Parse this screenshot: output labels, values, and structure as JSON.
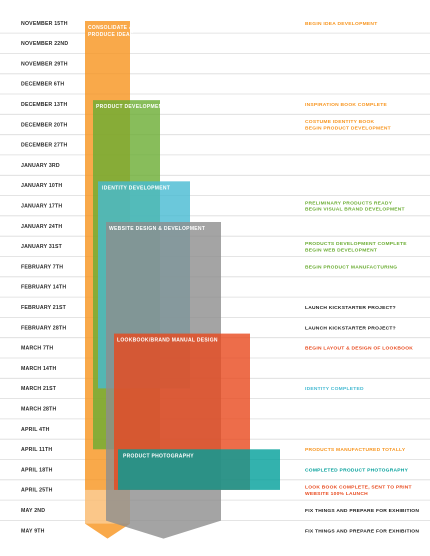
{
  "chart_data": {
    "type": "gantt",
    "dates": [
      "NOVEMBER 15TH",
      "NOVEMBER 22ND",
      "NOVEMBER 29TH",
      "DECEMBER 6TH",
      "DECEMBER 13TH",
      "DECEMBER 20TH",
      "DECEMBER 27TH",
      "JANUARY 3RD",
      "JANUARY 10TH",
      "JANUARY 17TH",
      "JANUARY 24TH",
      "JANUARY 31ST",
      "FEBRUARY 7TH",
      "FEBRUARY 14TH",
      "FEBRUARY 21ST",
      "FEBRUARY 28TH",
      "MARCH 7TH",
      "MARCH 14TH",
      "MARCH 21ST",
      "MARCH 28TH",
      "APRIL 4TH",
      "APRIL 11TH",
      "APRIL 18TH",
      "APRIL 25TH",
      "MAY 2ND",
      "MAY 9TH"
    ],
    "phases": [
      {
        "label": "CONSOLIDATE & PRODUCE IDEAS",
        "start": 0.4,
        "end": 25.9,
        "color": "#f7941d",
        "arrow": true,
        "fade_after": 23.5
      },
      {
        "label": "PRODUCT DEVELOPMENT",
        "start": 4.3,
        "end": 21.5,
        "color": "#6aac32"
      },
      {
        "label": "IDENTITY DEVELOPMENT",
        "start": 8.3,
        "end": 18.5,
        "color": "#46bad2"
      },
      {
        "label": "WEBSITE DESIGN & DEVELOPMENT",
        "start": 10.3,
        "end": 25.9,
        "color": "#8d8d8d",
        "arrow": true
      },
      {
        "label": "LOOKBOOK/BRAND MANUAL DESIGN",
        "start": 15.8,
        "end": 23.5,
        "color": "#e8491d"
      },
      {
        "label": "PRODUCT PHOTOGRAPHY",
        "start": 21.5,
        "end": 23.5,
        "color": "#009f9a"
      }
    ],
    "milestones": [
      {
        "row": 0,
        "lines": [
          "BEGIN IDEA DEVELOPMENT"
        ],
        "color": "#f7941d"
      },
      {
        "row": 4,
        "lines": [
          "INSPIRATION BOOK COMPLETE"
        ],
        "color": "#f7941d"
      },
      {
        "row": 5,
        "lines": [
          "COSTUME IDENTITY BOOK",
          "BEGIN PRODUCT DEVELOPMENT"
        ],
        "color": "#f7941d"
      },
      {
        "row": 9,
        "lines": [
          "PRELIMINARY PRODUCTS READY",
          "BEGIN VISUAL BRAND DEVELOPMENT"
        ],
        "color": "#6aac32"
      },
      {
        "row": 11,
        "lines": [
          "PRODUCTS DEVELOPMENT COMPLETE",
          "BEGIN WEB DEVELOPMENT"
        ],
        "color": "#6aac32"
      },
      {
        "row": 12,
        "lines": [
          "BEGIN PRODUCT MANUFACTURING"
        ],
        "color": "#6aac32"
      },
      {
        "row": 14,
        "lines": [
          "LAUNCH KICKSTARTER PROJECT?"
        ],
        "color": "#1a1a1a"
      },
      {
        "row": 15,
        "lines": [
          "LAUNCH KICKSTARTER PROJECT?"
        ],
        "color": "#1a1a1a"
      },
      {
        "row": 16,
        "lines": [
          "BEGIN LAYOUT & DESIGN OF LOOKBOOK"
        ],
        "color": "#e8491d"
      },
      {
        "row": 18,
        "lines": [
          "IDENTITY COMPLETED"
        ],
        "color": "#46bad2"
      },
      {
        "row": 21,
        "lines": [
          "PRODUCTS MANUFACTURED TOTALLY"
        ],
        "color": "#f7941d"
      },
      {
        "row": 22,
        "lines": [
          "COMPLETED PRODUCT PHOTOGRAPHY"
        ],
        "color": "#009f9a"
      },
      {
        "row": 23,
        "lines": [
          "LOOK BOOK COMPLETE, SENT TO PRINT",
          "WEBSITE 100% LAUNCH"
        ],
        "color": "#e8491d"
      },
      {
        "row": 24,
        "lines": [
          "FIX THINGS AND PREPARE FOR EXHIBITION"
        ],
        "color": "#1a1a1a"
      },
      {
        "row": 25,
        "lines": [
          "FIX THINGS AND PREPARE FOR EXHIBITION"
        ],
        "color": "#1a1a1a"
      }
    ]
  }
}
